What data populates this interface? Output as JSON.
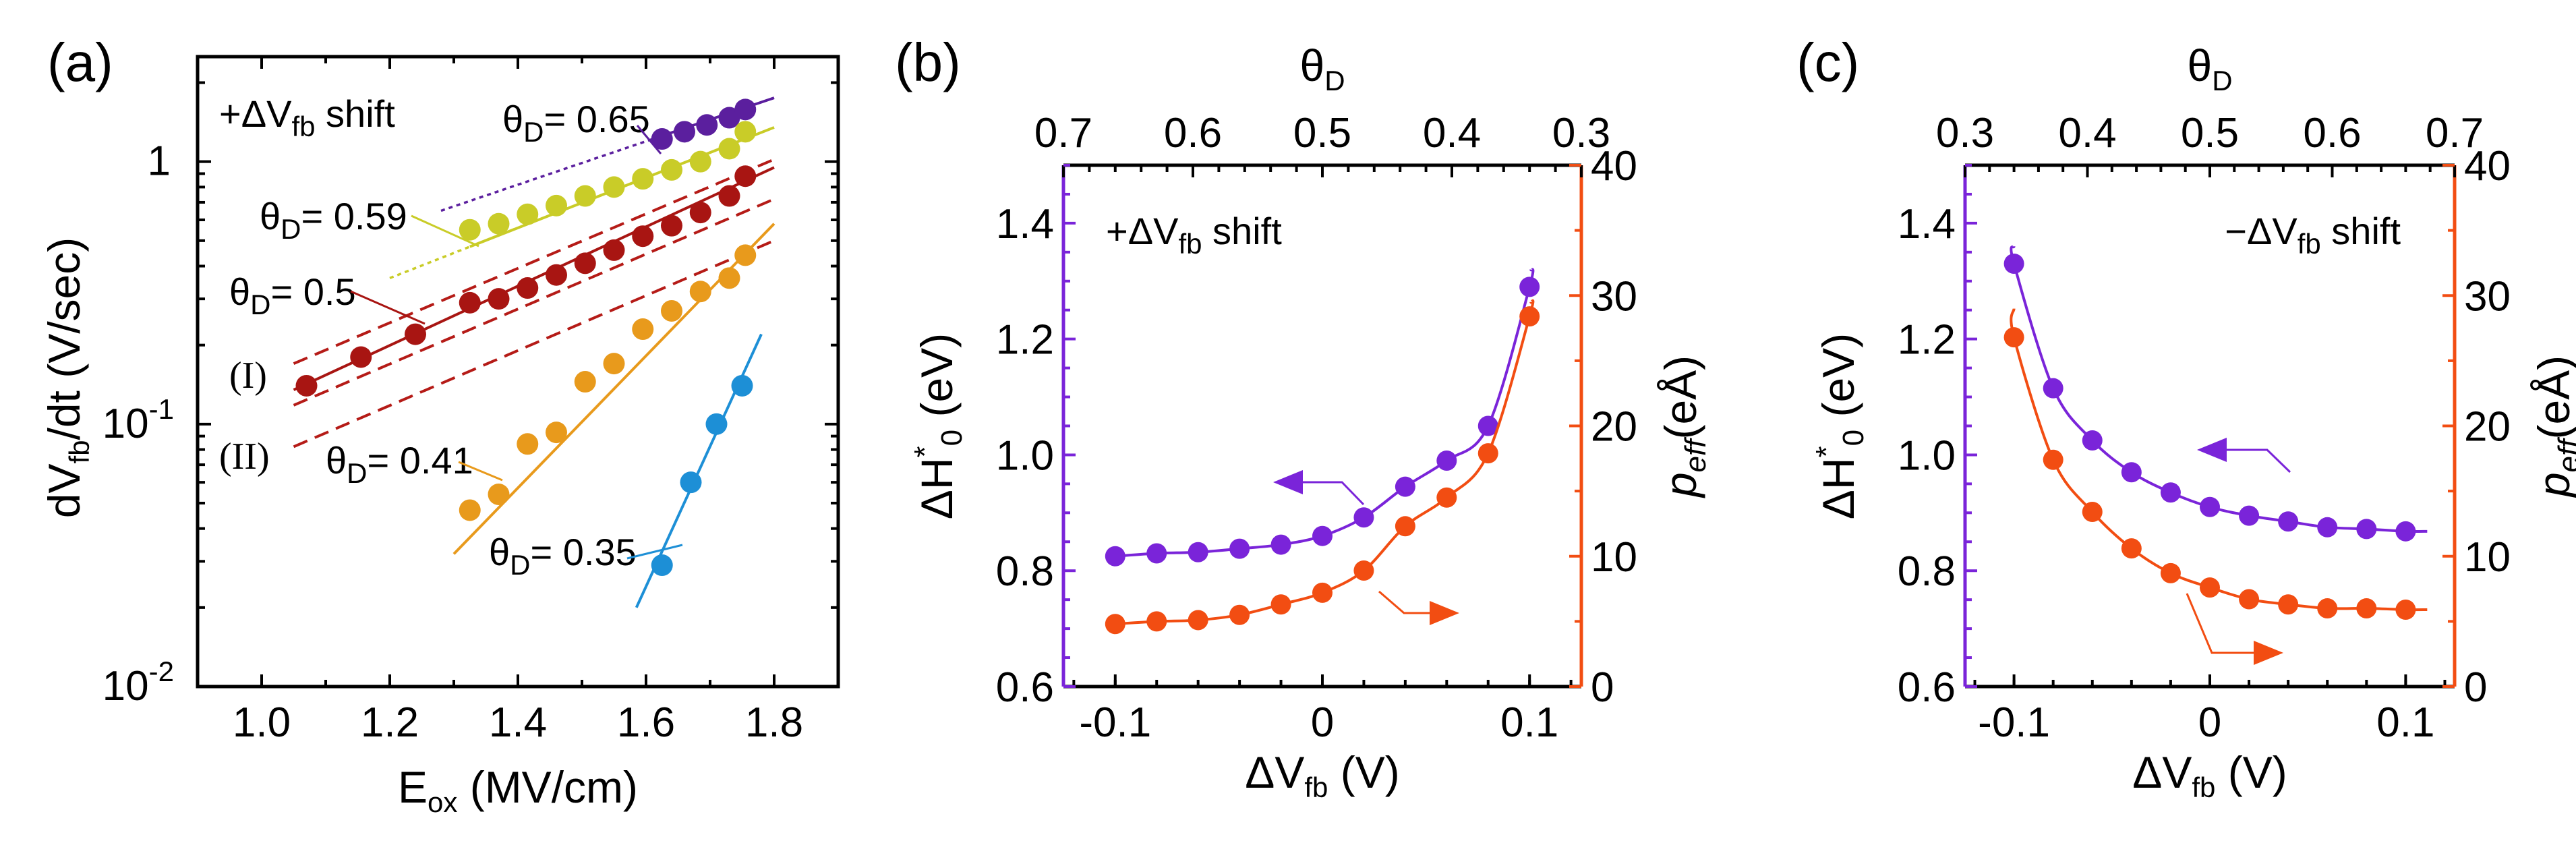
{
  "chart_data": [
    {
      "panel": "(a)",
      "type": "scatter",
      "xlabel": "E",
      "xlabel_sub": "ox",
      "xlabel_unit": "(MV/cm)",
      "ylabel_pre": "dV",
      "ylabel_sub": "fb",
      "ylabel_post": "/dt (V/sec)",
      "xlim": [
        0.9,
        1.9
      ],
      "ylim_log10": [
        -2,
        0.4
      ],
      "xticks": [
        "1.0",
        "1.2",
        "1.4",
        "1.6",
        "1.8"
      ],
      "yticks": [
        {
          "base": "10",
          "exp": "-2"
        },
        {
          "base": "10",
          "exp": "-1"
        },
        {
          "base": "1",
          "exp": ""
        }
      ],
      "annotation": {
        "pre": "+ΔV",
        "sub": "fb",
        "post": " shift"
      },
      "theta_symbol": "θ",
      "theta_sub": "D",
      "reference_lines": [
        "(I)",
        "(II)"
      ],
      "series": [
        {
          "name": "θD= 0.65",
          "value_label": "= 0.65",
          "color": "#5b1f9e",
          "x": [
            1.625,
            1.66,
            1.695,
            1.73,
            1.755
          ],
          "y": [
            1.22,
            1.3,
            1.38,
            1.47,
            1.58
          ],
          "fit": {
            "x": [
              1.28,
              1.8
            ],
            "y": [
              0.65,
              1.75
            ]
          }
        },
        {
          "name": "θD= 0.59",
          "value_label": "= 0.59",
          "color": "#c9cc28",
          "x": [
            1.325,
            1.37,
            1.415,
            1.46,
            1.505,
            1.55,
            1.595,
            1.64,
            1.685,
            1.73,
            1.755
          ],
          "y": [
            0.55,
            0.58,
            0.63,
            0.68,
            0.74,
            0.8,
            0.86,
            0.93,
            1.0,
            1.12,
            1.3
          ],
          "fit": {
            "x": [
              1.2,
              1.8
            ],
            "y": [
              0.36,
              1.35
            ]
          }
        },
        {
          "name": "θD= 0.5",
          "value_label": "= 0.5",
          "color": "#a81512",
          "x": [
            1.07,
            1.155,
            1.24,
            1.325,
            1.37,
            1.415,
            1.46,
            1.505,
            1.55,
            1.595,
            1.64,
            1.685,
            1.73,
            1.755
          ],
          "y": [
            0.14,
            0.18,
            0.22,
            0.29,
            0.3,
            0.33,
            0.37,
            0.41,
            0.46,
            0.52,
            0.57,
            0.64,
            0.74,
            0.88
          ],
          "fit": {
            "x": [
              1.05,
              1.8
            ],
            "y": [
              0.135,
              0.95
            ]
          }
        },
        {
          "name": "θD= 0.41",
          "value_label": "= 0.41",
          "color": "#e89a1c",
          "x": [
            1.325,
            1.37,
            1.415,
            1.46,
            1.505,
            1.55,
            1.595,
            1.64,
            1.685,
            1.73,
            1.755
          ],
          "y": [
            0.047,
            0.054,
            0.084,
            0.093,
            0.145,
            0.17,
            0.23,
            0.27,
            0.32,
            0.36,
            0.44
          ],
          "fit": {
            "x": [
              1.3,
              1.8
            ],
            "y": [
              0.032,
              0.58
            ]
          }
        },
        {
          "name": "θD= 0.35",
          "value_label": "= 0.35",
          "color": "#1d8fd6",
          "x": [
            1.625,
            1.67,
            1.71,
            1.75
          ],
          "y": [
            0.029,
            0.06,
            0.1,
            0.14
          ],
          "fit": {
            "x": [
              1.585,
              1.78
            ],
            "y": [
              0.02,
              0.22
            ]
          }
        }
      ],
      "dashed_lines": [
        {
          "label": "(I)",
          "x": [
            1.05,
            1.8
          ],
          "y": [
            0.17,
            1.02
          ]
        },
        {
          "label": "",
          "x": [
            1.05,
            1.8
          ],
          "y": [
            0.118,
            0.72
          ]
        },
        {
          "label": "(II)",
          "x": [
            1.05,
            1.8
          ],
          "y": [
            0.082,
            0.5
          ]
        }
      ]
    },
    {
      "panel": "(b)",
      "type": "scatter",
      "xlabel_pre": "ΔV",
      "xlabel_sub": "fb",
      "xlabel_unit": " (V)",
      "top_xlabel": "θ",
      "top_xlabel_sub": "D",
      "ylabel_left": "ΔH",
      "ylabel_left_sup": "*",
      "ylabel_left_sub": "0",
      "ylabel_left_unit": " (eV)",
      "ylabel_right": "p",
      "ylabel_right_sub": "eff",
      "ylabel_right_unit": "(eÅ)",
      "xlim": [
        -0.125,
        0.125
      ],
      "ylim_left": [
        0.6,
        1.5
      ],
      "ylim_right": [
        0,
        40
      ],
      "top_xlim": [
        0.7,
        0.3
      ],
      "xticks": [
        "-0.1",
        "0",
        "0.1"
      ],
      "top_xticks": [
        "0.7",
        "0.6",
        "0.5",
        "0.4",
        "0.3"
      ],
      "yticks_left": [
        "0.6",
        "0.8",
        "1.0",
        "1.2",
        "1.4"
      ],
      "yticks_right": [
        "0",
        "10",
        "20",
        "30",
        "40"
      ],
      "annotation": {
        "pre": "+ΔV",
        "sub": "fb",
        "post": " shift"
      },
      "series": [
        {
          "name": "ΔH0*",
          "axis": "left",
          "color": "#7a24d9",
          "x": [
            -0.1,
            -0.08,
            -0.06,
            -0.04,
            -0.02,
            0.0,
            0.02,
            0.04,
            0.06,
            0.08,
            0.1
          ],
          "y": [
            0.825,
            0.83,
            0.832,
            0.838,
            0.845,
            0.86,
            0.892,
            0.945,
            0.99,
            1.05,
            1.29
          ]
        },
        {
          "name": "peff",
          "axis": "right",
          "color": "#f24d12",
          "x": [
            -0.1,
            -0.08,
            -0.06,
            -0.04,
            -0.02,
            0.0,
            0.02,
            0.04,
            0.06,
            0.08,
            0.1
          ],
          "y": [
            4.8,
            5.0,
            5.1,
            5.5,
            6.3,
            7.2,
            8.9,
            12.3,
            14.5,
            17.9,
            28.4
          ]
        }
      ]
    },
    {
      "panel": "(c)",
      "type": "scatter",
      "xlabel_pre": "ΔV",
      "xlabel_sub": "fb",
      "xlabel_unit": " (V)",
      "top_xlabel": "θ",
      "top_xlabel_sub": "D",
      "ylabel_left": "ΔH",
      "ylabel_left_sup": "*",
      "ylabel_left_sub": "0",
      "ylabel_left_unit": " (eV)",
      "ylabel_right": "p",
      "ylabel_right_sub": "eff",
      "ylabel_right_unit": "(eÅ)",
      "xlim": [
        -0.125,
        0.125
      ],
      "ylim_left": [
        0.6,
        1.5
      ],
      "ylim_right": [
        0,
        40
      ],
      "top_xlim": [
        0.3,
        0.7
      ],
      "xticks": [
        "-0.1",
        "0",
        "0.1"
      ],
      "top_xticks": [
        "0.3",
        "0.4",
        "0.5",
        "0.6",
        "0.7"
      ],
      "yticks_left": [
        "0.6",
        "0.8",
        "1.0",
        "1.2",
        "1.4"
      ],
      "yticks_right": [
        "0",
        "10",
        "20",
        "30",
        "40"
      ],
      "annotation": {
        "pre": "−ΔV",
        "sub": "fb",
        "post": " shift"
      },
      "series": [
        {
          "name": "ΔH0*",
          "axis": "left",
          "color": "#7a24d9",
          "x": [
            -0.1,
            -0.08,
            -0.06,
            -0.04,
            -0.02,
            0.0,
            0.02,
            0.04,
            0.06,
            0.08,
            0.1
          ],
          "y": [
            1.33,
            1.115,
            1.025,
            0.97,
            0.935,
            0.91,
            0.895,
            0.885,
            0.875,
            0.872,
            0.868
          ]
        },
        {
          "name": "peff",
          "axis": "right",
          "color": "#f24d12",
          "x": [
            -0.1,
            -0.08,
            -0.06,
            -0.04,
            -0.02,
            0.0,
            0.02,
            0.04,
            0.06,
            0.08,
            0.1
          ],
          "y": [
            26.8,
            17.4,
            13.4,
            10.6,
            8.7,
            7.6,
            6.7,
            6.3,
            6.0,
            6.0,
            5.9
          ]
        }
      ]
    }
  ]
}
